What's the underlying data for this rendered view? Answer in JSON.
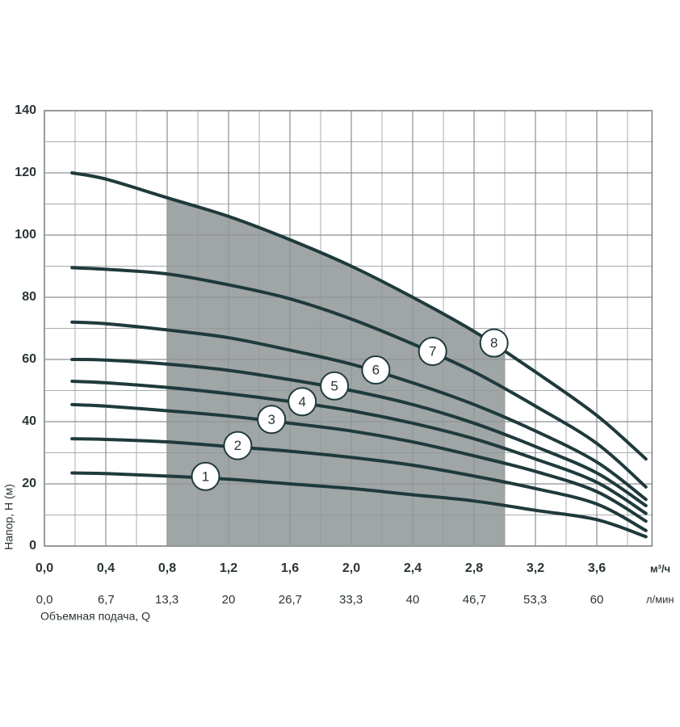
{
  "chart_data": {
    "type": "line",
    "x_unit": "м³/ч",
    "x2_unit": "л/мин",
    "x2_label": "Объемная подача, Q",
    "y_label": "Напор, H (м)",
    "x": [
      0.18,
      0.4,
      0.8,
      1.2,
      1.6,
      2.0,
      2.4,
      2.8,
      3.2,
      3.6,
      3.92
    ],
    "series": [
      {
        "name": "1",
        "color": "#1f3a3c",
        "values": [
          23.5,
          23.3,
          22.5,
          21.5,
          20,
          18.5,
          16.5,
          14.5,
          11.5,
          8.5,
          3
        ]
      },
      {
        "name": "2",
        "color": "#1f3a3c",
        "values": [
          34.5,
          34.3,
          33.5,
          32,
          30.5,
          28.5,
          26,
          22.5,
          18.5,
          13.5,
          5
        ]
      },
      {
        "name": "3",
        "color": "#1f3a3c",
        "values": [
          45.5,
          45,
          43.5,
          41.8,
          39.5,
          37,
          33.5,
          29,
          24,
          17.5,
          8
        ]
      },
      {
        "name": "4",
        "color": "#1f3a3c",
        "values": [
          53,
          52.5,
          51,
          49,
          46.5,
          43.5,
          39.5,
          34.5,
          28,
          20.5,
          10.5
        ]
      },
      {
        "name": "5",
        "color": "#1f3a3c",
        "values": [
          60,
          59.8,
          58.5,
          56.5,
          53.5,
          50,
          45.5,
          39.5,
          32,
          23.5,
          13
        ]
      },
      {
        "name": "6",
        "color": "#1f3a3c",
        "values": [
          72,
          71.5,
          69.5,
          67,
          63,
          58.5,
          52.5,
          45.5,
          37,
          27,
          15
        ]
      },
      {
        "name": "7",
        "color": "#1f3a3c",
        "values": [
          89.5,
          89,
          87.5,
          84,
          79.5,
          73,
          65,
          56,
          45,
          33,
          19
        ]
      },
      {
        "name": "8",
        "color": "#1f3a3c",
        "values": [
          120,
          118,
          112,
          106,
          98.5,
          90,
          80,
          69,
          56,
          42,
          28
        ]
      }
    ],
    "working_range": [
      0.8,
      3.0
    ],
    "working_range_color": "#8f9597",
    "xlim": [
      0,
      3.96
    ],
    "xticks": [
      {
        "value": 0,
        "label": "0,0"
      },
      {
        "value": 0.4,
        "label": "0,4"
      },
      {
        "value": 0.8,
        "label": "0,8"
      },
      {
        "value": 1.2,
        "label": "1,2"
      },
      {
        "value": 1.6,
        "label": "1,6"
      },
      {
        "value": 2.0,
        "label": "2,0"
      },
      {
        "value": 2.4,
        "label": "2,4"
      },
      {
        "value": 2.8,
        "label": "2,8"
      },
      {
        "value": 3.2,
        "label": "3,2"
      },
      {
        "value": 3.6,
        "label": "3,6"
      }
    ],
    "x2lim": [
      0,
      66
    ],
    "x2ticks": [
      {
        "value": 0,
        "label": "0,0"
      },
      {
        "value": 6.7,
        "label": "6,7"
      },
      {
        "value": 13.3,
        "label": "13,3"
      },
      20,
      {
        "value": 26.7,
        "label": "26,7"
      },
      {
        "value": 33.3,
        "label": "33,3"
      },
      40,
      {
        "value": 46.7,
        "label": "46,7"
      },
      {
        "value": 53.3,
        "label": "53,3"
      },
      60
    ],
    "ylim": [
      0,
      140
    ],
    "yticks": [
      0,
      20,
      40,
      60,
      80,
      100,
      120,
      140
    ],
    "grid": true
  }
}
